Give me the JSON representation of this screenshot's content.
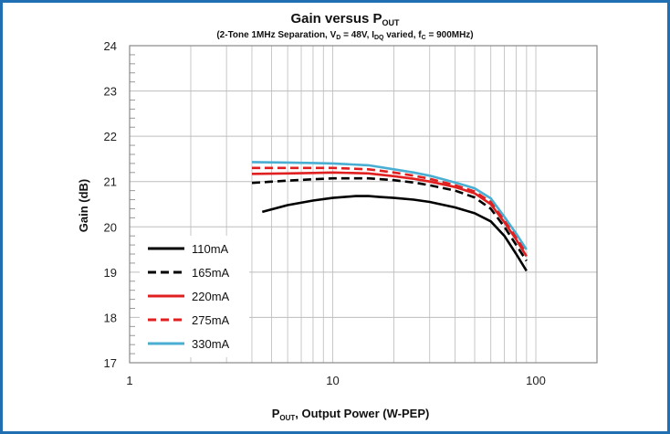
{
  "chart_data": {
    "type": "line",
    "title": {
      "main": "Gain versus P",
      "main_sub": "OUT"
    },
    "subtitle": {
      "p1": "(2-Tone 1MHz Separation, V",
      "s1": "D",
      "p2": " = 48V, I",
      "s2": "DQ",
      "p3": " varied, f",
      "s3": "C",
      "p4": " = 900MHz)"
    },
    "xlabel": {
      "p1": "P",
      "s1": "OUT",
      "p2": ", Output Power (W-PEP)"
    },
    "ylabel": "Gain (dB)",
    "x_scale": "log",
    "xlim": [
      1,
      200
    ],
    "ylim": [
      17,
      24
    ],
    "x_ticks": [
      1,
      10,
      100
    ],
    "y_ticks": [
      17,
      18,
      19,
      20,
      21,
      22,
      23,
      24
    ],
    "grid": true,
    "legend_position": "bottom-left",
    "series": [
      {
        "name": "110mA",
        "color": "#000000",
        "dash": "solid",
        "x": [
          4.5,
          6,
          8,
          10,
          13,
          15,
          17,
          20,
          25,
          30,
          40,
          50,
          60,
          70,
          80,
          90
        ],
        "y": [
          20.33,
          20.48,
          20.58,
          20.64,
          20.68,
          20.68,
          20.66,
          20.64,
          20.6,
          20.55,
          20.43,
          20.3,
          20.12,
          19.8,
          19.4,
          19.03
        ]
      },
      {
        "name": "165mA",
        "color": "#000000",
        "dash": "dashed",
        "x": [
          4,
          6,
          8,
          10,
          15,
          20,
          25,
          30,
          40,
          50,
          60,
          70,
          80,
          90
        ],
        "y": [
          20.97,
          21.02,
          21.05,
          21.07,
          21.07,
          21.03,
          20.98,
          20.92,
          20.8,
          20.65,
          20.4,
          20.0,
          19.6,
          19.25
        ]
      },
      {
        "name": "220mA",
        "color": "#e02020",
        "dash": "solid",
        "x": [
          4,
          6,
          8,
          10,
          15,
          20,
          25,
          30,
          40,
          50,
          60,
          70,
          80,
          90
        ],
        "y": [
          21.17,
          21.18,
          21.19,
          21.2,
          21.18,
          21.12,
          21.06,
          21.0,
          20.88,
          20.74,
          20.5,
          20.1,
          19.72,
          19.35
        ]
      },
      {
        "name": "275mA",
        "color": "#e02020",
        "dash": "dashed",
        "x": [
          4,
          6,
          8,
          10,
          15,
          20,
          25,
          30,
          40,
          50,
          60,
          70,
          80,
          90
        ],
        "y": [
          21.3,
          21.3,
          21.3,
          21.3,
          21.27,
          21.2,
          21.13,
          21.06,
          20.92,
          20.78,
          20.55,
          20.15,
          19.78,
          19.42
        ]
      },
      {
        "name": "330mA",
        "color": "#4aaed3",
        "dash": "solid",
        "x": [
          4,
          6,
          8,
          10,
          15,
          20,
          25,
          30,
          40,
          50,
          60,
          70,
          80,
          90
        ],
        "y": [
          21.43,
          21.42,
          21.41,
          21.4,
          21.36,
          21.27,
          21.2,
          21.13,
          20.98,
          20.85,
          20.63,
          20.22,
          19.85,
          19.5
        ]
      }
    ]
  }
}
